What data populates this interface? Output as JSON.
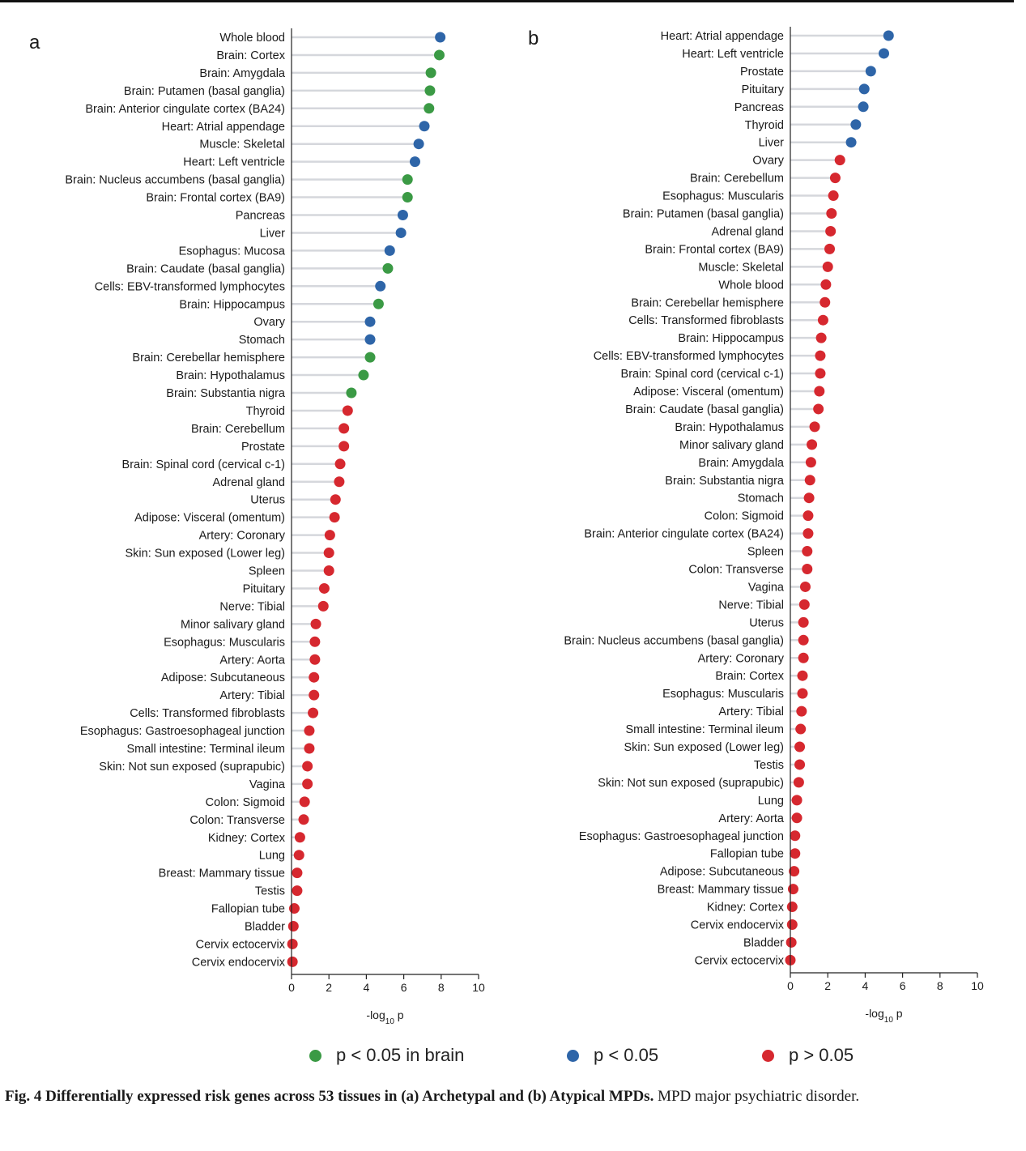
{
  "colors": {
    "brain_sig": "#3b9a45",
    "sig": "#2e65a8",
    "nonsig": "#d6282f",
    "stem": "#d5d7dc"
  },
  "legend": [
    {
      "key": "brain_sig",
      "label": "p < 0.05 in brain"
    },
    {
      "key": "sig",
      "label": "p < 0.05"
    },
    {
      "key": "nonsig",
      "label": "p > 0.05"
    }
  ],
  "caption": {
    "bold": "Fig. 4 Differentially expressed risk genes across 53 tissues in (a) Archetypal and (b) Atypical MPDs.",
    "rest": " MPD major psychiatric disorder."
  },
  "chart_data": [
    {
      "panel": "a",
      "type": "lollipop",
      "xlabel": "-log10 p",
      "xlim": [
        0,
        10
      ],
      "xticks": [
        "0",
        "2",
        "4",
        "6",
        "8",
        "10"
      ],
      "categories": [
        "Whole blood",
        "Brain: Cortex",
        "Brain: Amygdala",
        "Brain: Putamen (basal ganglia)",
        "Brain: Anterior cingulate cortex (BA24)",
        "Heart: Atrial appendage",
        "Muscle: Skeletal",
        "Heart: Left ventricle",
        "Brain: Nucleus accumbens (basal ganglia)",
        "Brain: Frontal cortex (BA9)",
        "Pancreas",
        "Liver",
        "Esophagus: Mucosa",
        "Brain: Caudate (basal ganglia)",
        "Cells: EBV-transformed lymphocytes",
        "Brain: Hippocampus",
        "Ovary",
        "Stomach",
        "Brain: Cerebellar hemisphere",
        "Brain: Hypothalamus",
        "Brain: Substantia nigra",
        "Thyroid",
        "Brain: Cerebellum",
        "Prostate",
        "Brain: Spinal cord (cervical c-1)",
        "Adrenal gland",
        "Uterus",
        "Adipose: Visceral (omentum)",
        "Artery: Coronary",
        "Skin: Sun exposed (Lower leg)",
        "Spleen",
        "Pituitary",
        "Nerve: Tibial",
        "Minor salivary gland",
        "Esophagus: Muscularis",
        "Artery: Aorta",
        "Adipose: Subcutaneous",
        "Artery: Tibial",
        "Cells: Transformed fibroblasts",
        "Esophagus: Gastroesophageal junction",
        "Small intestine: Terminal ileum",
        "Skin: Not sun exposed (suprapubic)",
        "Vagina",
        "Colon: Sigmoid",
        "Colon: Transverse",
        "Kidney: Cortex",
        "Lung",
        "Breast: Mammary tissue",
        "Testis",
        "Fallopian tube",
        "Bladder",
        "Cervix ectocervix",
        "Cervix endocervix"
      ],
      "values": [
        7.95,
        7.9,
        7.45,
        7.4,
        7.35,
        7.1,
        6.8,
        6.6,
        6.2,
        6.2,
        5.95,
        5.85,
        5.25,
        5.15,
        4.75,
        4.65,
        4.2,
        4.2,
        4.2,
        3.85,
        3.2,
        3.0,
        2.8,
        2.8,
        2.6,
        2.55,
        2.35,
        2.3,
        2.05,
        2.0,
        2.0,
        1.75,
        1.7,
        1.3,
        1.25,
        1.25,
        1.2,
        1.2,
        1.15,
        0.95,
        0.95,
        0.85,
        0.85,
        0.7,
        0.65,
        0.45,
        0.4,
        0.3,
        0.3,
        0.15,
        0.1,
        0.05,
        0.05
      ],
      "groups": [
        "sig",
        "brain_sig",
        "brain_sig",
        "brain_sig",
        "brain_sig",
        "sig",
        "sig",
        "sig",
        "brain_sig",
        "brain_sig",
        "sig",
        "sig",
        "sig",
        "brain_sig",
        "sig",
        "brain_sig",
        "sig",
        "sig",
        "brain_sig",
        "brain_sig",
        "brain_sig",
        "nonsig",
        "nonsig",
        "nonsig",
        "nonsig",
        "nonsig",
        "nonsig",
        "nonsig",
        "nonsig",
        "nonsig",
        "nonsig",
        "nonsig",
        "nonsig",
        "nonsig",
        "nonsig",
        "nonsig",
        "nonsig",
        "nonsig",
        "nonsig",
        "nonsig",
        "nonsig",
        "nonsig",
        "nonsig",
        "nonsig",
        "nonsig",
        "nonsig",
        "nonsig",
        "nonsig",
        "nonsig",
        "nonsig",
        "nonsig",
        "nonsig",
        "nonsig"
      ]
    },
    {
      "panel": "b",
      "type": "lollipop",
      "xlabel": "-log10 p",
      "xlim": [
        0,
        10
      ],
      "xticks": [
        "0",
        "2",
        "4",
        "6",
        "8",
        "10"
      ],
      "categories": [
        "Heart: Atrial appendage",
        "Heart: Left ventricle",
        "Prostate",
        "Pituitary",
        "Pancreas",
        "Thyroid",
        "Liver",
        "Ovary",
        "Brain: Cerebellum",
        "Esophagus: Muscularis",
        "Brain: Putamen (basal ganglia)",
        "Adrenal gland",
        "Brain: Frontal cortex (BA9)",
        "Muscle: Skeletal",
        "Whole blood",
        "Brain: Cerebellar hemisphere",
        "Cells: Transformed fibroblasts",
        "Brain: Hippocampus",
        "Cells: EBV-transformed lymphocytes",
        "Brain: Spinal cord (cervical c-1)",
        "Adipose: Visceral (omentum)",
        "Brain: Caudate (basal ganglia)",
        "Brain: Hypothalamus",
        "Minor salivary gland",
        "Brain: Amygdala",
        "Brain: Substantia nigra",
        "Stomach",
        "Colon: Sigmoid",
        "Brain: Anterior cingulate cortex (BA24)",
        "Spleen",
        "Colon: Transverse",
        "Vagina",
        "Nerve: Tibial",
        "Uterus",
        "Brain: Nucleus accumbens (basal ganglia)",
        "Artery: Coronary",
        "Brain: Cortex",
        "Esophagus: Muscularis",
        "Artery: Tibial",
        "Small intestine: Terminal ileum",
        "Skin: Sun exposed (Lower leg)",
        "Testis",
        "Skin: Not sun exposed (suprapubic)",
        "Lung",
        "Artery: Aorta",
        "Esophagus: Gastroesophageal junction",
        "Fallopian tube",
        "Adipose: Subcutaneous",
        "Breast: Mammary tissue",
        "Kidney: Cortex",
        "Cervix endocervix",
        "Bladder",
        "Cervix ectocervix"
      ],
      "values": [
        5.25,
        5.0,
        4.3,
        3.95,
        3.9,
        3.5,
        3.25,
        2.65,
        2.4,
        2.3,
        2.2,
        2.15,
        2.1,
        2.0,
        1.9,
        1.85,
        1.75,
        1.65,
        1.6,
        1.6,
        1.55,
        1.5,
        1.3,
        1.15,
        1.1,
        1.05,
        1.0,
        0.95,
        0.95,
        0.9,
        0.9,
        0.8,
        0.75,
        0.7,
        0.7,
        0.7,
        0.65,
        0.65,
        0.6,
        0.55,
        0.5,
        0.5,
        0.45,
        0.35,
        0.35,
        0.25,
        0.25,
        0.2,
        0.15,
        0.1,
        0.1,
        0.05,
        0.0
      ],
      "groups": [
        "sig",
        "sig",
        "sig",
        "sig",
        "sig",
        "sig",
        "sig",
        "nonsig",
        "nonsig",
        "nonsig",
        "nonsig",
        "nonsig",
        "nonsig",
        "nonsig",
        "nonsig",
        "nonsig",
        "nonsig",
        "nonsig",
        "nonsig",
        "nonsig",
        "nonsig",
        "nonsig",
        "nonsig",
        "nonsig",
        "nonsig",
        "nonsig",
        "nonsig",
        "nonsig",
        "nonsig",
        "nonsig",
        "nonsig",
        "nonsig",
        "nonsig",
        "nonsig",
        "nonsig",
        "nonsig",
        "nonsig",
        "nonsig",
        "nonsig",
        "nonsig",
        "nonsig",
        "nonsig",
        "nonsig",
        "nonsig",
        "nonsig",
        "nonsig",
        "nonsig",
        "nonsig",
        "nonsig",
        "nonsig",
        "nonsig",
        "nonsig",
        "nonsig"
      ]
    }
  ]
}
